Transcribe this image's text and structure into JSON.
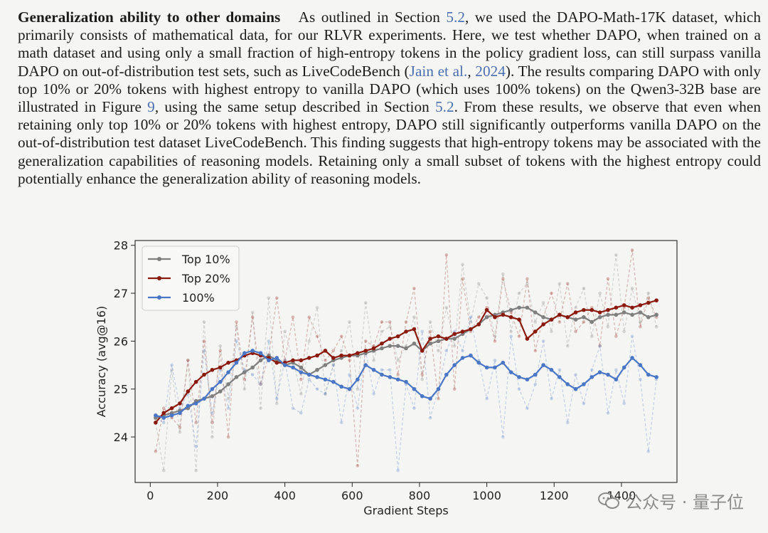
{
  "paragraph": {
    "heading": "Generalization ability to other domains",
    "seg1": "As outlined in Section ",
    "ref1": "5.2",
    "seg2": ", we used the DAPO-Math-17K dataset, which primarily consists of mathematical data, for our RLVR experiments. Here, we test whether DAPO, when trained on a math dataset and using only a small fraction of high-entropy tokens in the policy gradient loss, can still surpass vanilla DAPO on out-of-distribution test sets, such as LiveCodeBench (",
    "ref2": "Jain et al.",
    "seg3": ", ",
    "ref3": "2024",
    "seg4": "). The results comparing DAPO with only top 10% or 20% tokens with highest entropy to vanilla DAPO (which uses 100% tokens) on the Qwen3-32B base are illustrated in Figure ",
    "ref4": "9",
    "seg5": ", using the same setup described in Section ",
    "ref5": "5.2",
    "seg6": ". From these results, we observe that even when retaining only top 10% or 20% tokens with highest entropy, DAPO still significantly outperforms vanilla DAPO on the out-of-distribution test dataset LiveCodeBench. This finding suggests that high-entropy tokens may be associated with the generalization capabilities of reasoning models. Retaining only a small subset of tokens with the highest entropy could potentially enhance the generalization ability of reasoning models."
  },
  "watermark": {
    "text": "公众号 · 量子位",
    "icon": "wechat-icon"
  },
  "chart_data": {
    "type": "line",
    "xlabel": "Gradient Steps",
    "ylabel": "Accuracy (avg@16)",
    "xlim": [
      -45,
      1565
    ],
    "ylim": [
      23.05,
      28.1
    ],
    "xticks": [
      0,
      200,
      400,
      600,
      800,
      1000,
      1200,
      1400
    ],
    "yticks": [
      24,
      25,
      26,
      27,
      28
    ],
    "legend_position": "top-left",
    "grid": false,
    "series": [
      {
        "name": "Top 10%",
        "color": "#7f7f7f",
        "x": [
          16,
          40,
          64,
          88,
          112,
          136,
          160,
          184,
          208,
          232,
          256,
          280,
          304,
          328,
          352,
          376,
          400,
          424,
          448,
          472,
          496,
          520,
          544,
          568,
          592,
          616,
          640,
          664,
          688,
          712,
          736,
          760,
          784,
          808,
          832,
          856,
          880,
          904,
          928,
          952,
          976,
          1000,
          1024,
          1048,
          1072,
          1096,
          1120,
          1144,
          1168,
          1192,
          1216,
          1240,
          1264,
          1288,
          1312,
          1336,
          1360,
          1384,
          1408,
          1432,
          1456,
          1480,
          1504
        ],
        "values": [
          24.4,
          24.45,
          24.5,
          24.55,
          24.6,
          24.75,
          24.8,
          24.85,
          24.95,
          25.1,
          25.25,
          25.35,
          25.45,
          25.6,
          25.7,
          25.6,
          25.5,
          25.55,
          25.45,
          25.3,
          25.4,
          25.5,
          25.6,
          25.65,
          25.7,
          25.7,
          25.75,
          25.8,
          25.85,
          25.9,
          25.9,
          25.85,
          25.95,
          25.8,
          25.95,
          26.0,
          26.05,
          26.05,
          26.15,
          26.25,
          26.35,
          26.5,
          26.55,
          26.6,
          26.65,
          26.7,
          26.7,
          26.6,
          26.5,
          26.45,
          26.55,
          26.5,
          26.45,
          26.5,
          26.4,
          26.5,
          26.55,
          26.55,
          26.6,
          26.55,
          26.6,
          26.5,
          26.55
        ],
        "raw": [
          24.3,
          23.3,
          25.4,
          24.1,
          25.6,
          23.3,
          26.4,
          24.0,
          25.9,
          24.8,
          26.3,
          25.0,
          26.6,
          24.6,
          26.9,
          24.7,
          26.2,
          25.6,
          24.9,
          26.0,
          26.7,
          24.9,
          25.5,
          25.8,
          26.4,
          25.0,
          26.8,
          25.6,
          26.2,
          26.3,
          25.6,
          25.9,
          26.5,
          25.2,
          26.4,
          25.8,
          26.7,
          25.9,
          27.6,
          26.4,
          27.2,
          26.9,
          26.1,
          27.4,
          26.2,
          27.0,
          27.2,
          26.4,
          26.8,
          26.2,
          27.2,
          25.9,
          26.7,
          27.1,
          26.1,
          27.0,
          26.3,
          27.8,
          26.2,
          27.1,
          26.4,
          27.0,
          26.3
        ]
      },
      {
        "name": "Top 20%",
        "color": "#8b1a0e",
        "x": [
          16,
          40,
          64,
          88,
          112,
          136,
          160,
          184,
          208,
          232,
          256,
          280,
          304,
          328,
          352,
          376,
          400,
          424,
          448,
          472,
          496,
          520,
          544,
          568,
          592,
          616,
          640,
          664,
          688,
          712,
          736,
          760,
          784,
          808,
          832,
          856,
          880,
          904,
          928,
          952,
          976,
          1000,
          1024,
          1048,
          1072,
          1096,
          1120,
          1144,
          1168,
          1192,
          1216,
          1240,
          1264,
          1288,
          1312,
          1336,
          1360,
          1384,
          1408,
          1432,
          1456,
          1480,
          1504
        ],
        "values": [
          24.3,
          24.5,
          24.6,
          24.7,
          24.95,
          25.15,
          25.3,
          25.4,
          25.45,
          25.55,
          25.6,
          25.7,
          25.75,
          25.7,
          25.65,
          25.55,
          25.55,
          25.6,
          25.6,
          25.65,
          25.7,
          25.8,
          25.65,
          25.7,
          25.7,
          25.75,
          25.8,
          25.85,
          25.95,
          26.05,
          26.1,
          26.2,
          26.25,
          25.8,
          26.05,
          26.1,
          26.05,
          26.15,
          26.2,
          26.25,
          26.35,
          26.65,
          26.5,
          26.55,
          26.5,
          26.45,
          26.05,
          26.2,
          26.35,
          26.45,
          26.55,
          26.5,
          26.6,
          26.65,
          26.65,
          26.6,
          26.65,
          26.7,
          26.75,
          26.7,
          26.75,
          26.8,
          26.85
        ],
        "raw": [
          23.7,
          24.6,
          24.4,
          24.2,
          25.6,
          24.3,
          26.0,
          24.3,
          25.8,
          24.0,
          26.4,
          25.2,
          26.5,
          25.1,
          25.7,
          26.9,
          25.6,
          26.5,
          25.2,
          26.5,
          26.1,
          25.6,
          25.8,
          26.1,
          25.6,
          23.4,
          26.0,
          25.9,
          26.4,
          26.4,
          25.3,
          26.4,
          27.1,
          25.3,
          26.2,
          24.8,
          27.8,
          25.0,
          27.3,
          26.2,
          26.5,
          26.7,
          26.0,
          27.3,
          26.6,
          26.1,
          27.3,
          25.8,
          26.5,
          27.0,
          26.4,
          27.2,
          26.2,
          26.4,
          26.7,
          25.9,
          27.3,
          26.1,
          26.7,
          27.9,
          26.3,
          26.9,
          26.5
        ]
      },
      {
        "name": "100%",
        "color": "#4a76c6",
        "x": [
          16,
          40,
          64,
          88,
          112,
          136,
          160,
          184,
          208,
          232,
          256,
          280,
          304,
          328,
          352,
          376,
          400,
          424,
          448,
          472,
          496,
          520,
          544,
          568,
          592,
          616,
          640,
          664,
          688,
          712,
          736,
          760,
          784,
          808,
          832,
          856,
          880,
          904,
          928,
          952,
          976,
          1000,
          1024,
          1048,
          1072,
          1096,
          1120,
          1144,
          1168,
          1192,
          1216,
          1240,
          1264,
          1288,
          1312,
          1336,
          1360,
          1384,
          1408,
          1432,
          1456,
          1480,
          1504
        ],
        "values": [
          24.45,
          24.4,
          24.45,
          24.5,
          24.65,
          24.7,
          24.8,
          25.0,
          25.15,
          25.35,
          25.55,
          25.75,
          25.8,
          25.75,
          25.6,
          25.65,
          25.5,
          25.45,
          25.35,
          25.3,
          25.25,
          25.2,
          25.15,
          25.05,
          25.0,
          25.2,
          25.5,
          25.4,
          25.3,
          25.25,
          25.2,
          25.15,
          25.0,
          24.85,
          24.8,
          25.0,
          25.3,
          25.5,
          25.65,
          25.7,
          25.55,
          25.45,
          25.45,
          25.55,
          25.35,
          25.25,
          25.2,
          25.3,
          25.5,
          25.4,
          25.25,
          25.1,
          25.0,
          25.1,
          25.25,
          25.35,
          25.3,
          25.2,
          25.45,
          25.65,
          25.5,
          25.3,
          25.25
        ],
        "raw": [
          24.4,
          24.3,
          25.5,
          24.6,
          24.9,
          23.8,
          25.8,
          24.5,
          25.4,
          24.6,
          26.0,
          25.4,
          25.3,
          25.1,
          26.0,
          24.8,
          25.6,
          24.6,
          24.5,
          25.2,
          25.0,
          24.9,
          25.5,
          24.3,
          25.3,
          24.6,
          25.8,
          24.9,
          25.4,
          25.4,
          23.3,
          25.1,
          24.6,
          26.2,
          24.4,
          25.0,
          25.8,
          26.2,
          25.8,
          26.5,
          25.6,
          24.8,
          25.6,
          24.0,
          26.1,
          25.0,
          24.6,
          25.1,
          26.0,
          24.8,
          25.4,
          24.3,
          25.3,
          24.7,
          25.4,
          25.9,
          24.5,
          25.4,
          24.7,
          26.1,
          25.2,
          23.7,
          25.2
        ]
      }
    ]
  }
}
